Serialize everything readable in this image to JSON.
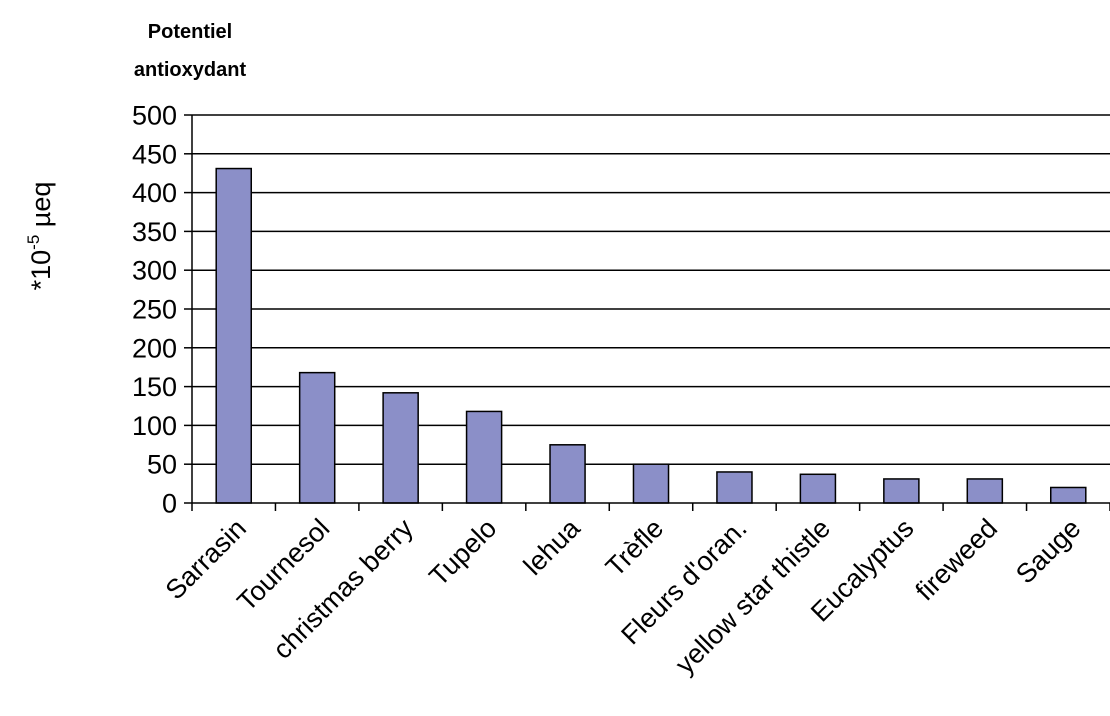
{
  "chart_data": {
    "type": "bar",
    "title_lines": [
      "Potentiel",
      "antioxydant"
    ],
    "ylabel": {
      "prefix": "*10",
      "superscript": "-5",
      "suffix": " µeq"
    },
    "xlabel": "",
    "ylim": [
      0,
      500
    ],
    "y_ticks": [
      0,
      50,
      100,
      150,
      200,
      250,
      300,
      350,
      400,
      450,
      500
    ],
    "grid": "horizontal",
    "legend": "none",
    "categories": [
      "Sarrasin",
      "Tournesol",
      "christmas berry",
      "Tupelo",
      "lehua",
      "Trèfle",
      "Fleurs d'oran.",
      "yellow star thistle",
      "Eucalyptus",
      "fireweed",
      "Sauge"
    ],
    "values": [
      431,
      168,
      142,
      118,
      75,
      50,
      40,
      37,
      31,
      31,
      20
    ],
    "colors": {
      "bar_fill": "#8b8fc8",
      "bar_stroke": "#000000",
      "grid": "#000000",
      "axis": "#000000"
    }
  }
}
